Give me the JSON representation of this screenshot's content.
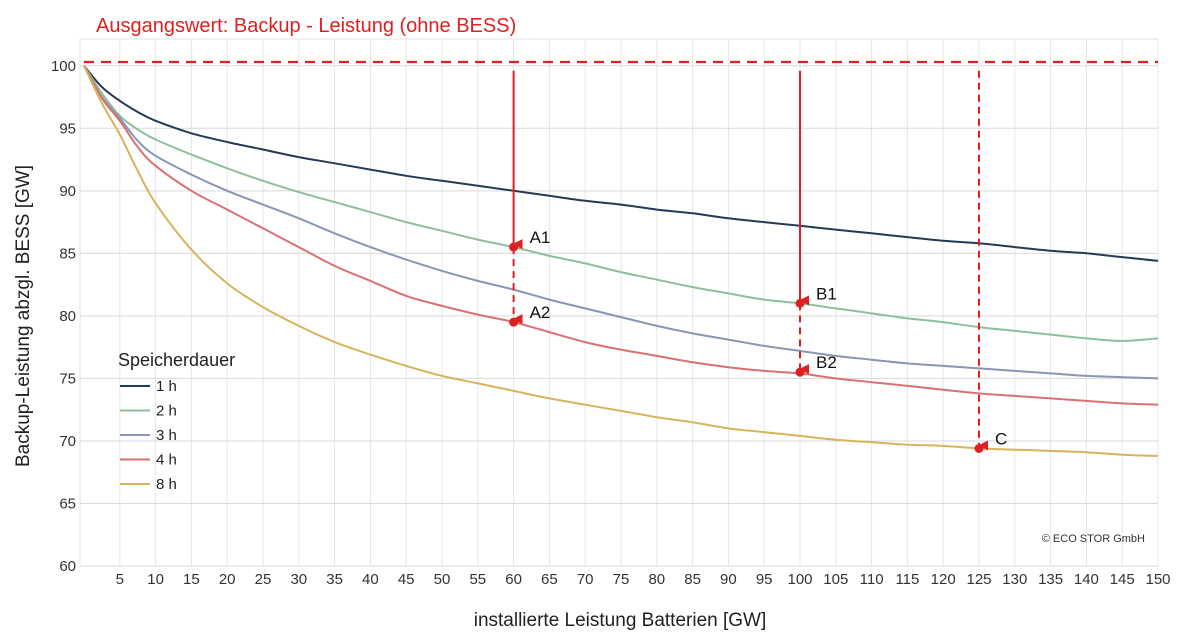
{
  "chart_data": {
    "type": "line",
    "title": "",
    "xlabel": "installierte Leistung Batterien [GW]",
    "ylabel": "Backup-Leistung abzgl. BESS [GW]",
    "xlim": [
      0,
      150
    ],
    "ylim": [
      60,
      101.5
    ],
    "x_ticks": [
      5,
      10,
      15,
      20,
      25,
      30,
      35,
      40,
      45,
      50,
      55,
      60,
      65,
      70,
      75,
      80,
      85,
      90,
      95,
      100,
      105,
      110,
      115,
      120,
      125,
      130,
      135,
      140,
      145,
      150
    ],
    "y_ticks": [
      60,
      65,
      70,
      75,
      80,
      85,
      90,
      95,
      100
    ],
    "grid": true,
    "legend": {
      "title": "Speicherdauer",
      "position": "lower-left"
    },
    "x": [
      0,
      2.5,
      5,
      7.5,
      10,
      15,
      20,
      25,
      30,
      35,
      40,
      45,
      50,
      55,
      60,
      65,
      70,
      75,
      80,
      85,
      90,
      95,
      100,
      105,
      110,
      115,
      120,
      125,
      130,
      135,
      140,
      145,
      150
    ],
    "series": [
      {
        "name": "1 h",
        "color": "#243a55",
        "values": [
          100,
          98.3,
          97.2,
          96.3,
          95.6,
          94.6,
          93.9,
          93.3,
          92.7,
          92.2,
          91.7,
          91.2,
          90.8,
          90.4,
          90.0,
          89.6,
          89.2,
          88.9,
          88.5,
          88.2,
          87.8,
          87.5,
          87.2,
          86.9,
          86.6,
          86.3,
          86.0,
          85.8,
          85.5,
          85.2,
          85.0,
          84.7,
          84.4
        ]
      },
      {
        "name": "2 h",
        "color": "#8ebf9b",
        "values": [
          100,
          97.8,
          96.0,
          94.9,
          94.1,
          92.9,
          91.8,
          90.8,
          89.9,
          89.1,
          88.3,
          87.5,
          86.8,
          86.1,
          85.5,
          84.8,
          84.2,
          83.5,
          82.9,
          82.3,
          81.8,
          81.3,
          81.0,
          80.6,
          80.2,
          79.8,
          79.5,
          79.1,
          78.8,
          78.5,
          78.2,
          78.0,
          78.2
        ]
      },
      {
        "name": "3 h",
        "color": "#8896b3",
        "values": [
          100,
          97.5,
          95.8,
          94.0,
          92.8,
          91.3,
          90.0,
          88.9,
          87.8,
          86.6,
          85.5,
          84.5,
          83.6,
          82.8,
          82.1,
          81.3,
          80.6,
          79.9,
          79.2,
          78.6,
          78.1,
          77.6,
          77.2,
          76.8,
          76.5,
          76.2,
          76.0,
          75.8,
          75.6,
          75.4,
          75.2,
          75.1,
          75.0
        ]
      },
      {
        "name": "4 h",
        "color": "#db7073",
        "values": [
          100,
          97.4,
          95.6,
          93.5,
          92.0,
          90.0,
          88.5,
          87.0,
          85.5,
          84.0,
          82.8,
          81.6,
          80.8,
          80.1,
          79.5,
          78.7,
          77.9,
          77.3,
          76.8,
          76.3,
          75.9,
          75.6,
          75.4,
          75.0,
          74.7,
          74.4,
          74.1,
          73.8,
          73.6,
          73.4,
          73.2,
          73.0,
          72.9
        ]
      },
      {
        "name": "8 h",
        "color": "#d7b35b",
        "values": [
          100,
          97.0,
          94.5,
          91.6,
          89.0,
          85.3,
          82.6,
          80.7,
          79.2,
          77.9,
          76.9,
          76.0,
          75.2,
          74.6,
          74.0,
          73.4,
          72.9,
          72.4,
          71.9,
          71.5,
          71.0,
          70.7,
          70.4,
          70.1,
          69.9,
          69.7,
          69.6,
          69.4,
          69.3,
          69.2,
          69.1,
          68.9,
          68.8
        ]
      }
    ],
    "baseline": {
      "label": "Ausgangswert: Backup - Leistung (ohne BESS)",
      "value": 100.3,
      "color": "#e02020"
    },
    "points": [
      {
        "label": "A1",
        "x": 60,
        "y": 85.5
      },
      {
        "label": "A2",
        "x": 60,
        "y": 79.5
      },
      {
        "label": "B1",
        "x": 100,
        "y": 81.0
      },
      {
        "label": "B2",
        "x": 100,
        "y": 75.5
      },
      {
        "label": "C",
        "x": 125,
        "y": 69.4
      }
    ],
    "arrows": [
      {
        "x": 60,
        "from": 99.6,
        "to": 85.5,
        "style": "solid"
      },
      {
        "x": 60,
        "from": 85.5,
        "to": 79.5,
        "style": "dashed"
      },
      {
        "x": 100,
        "from": 99.6,
        "to": 81.0,
        "style": "solid"
      },
      {
        "x": 100,
        "from": 81.0,
        "to": 75.5,
        "style": "dashed"
      },
      {
        "x": 125,
        "from": 99.6,
        "to": 69.4,
        "style": "dashed"
      }
    ],
    "copyright": "© ECO STOR GmbH"
  }
}
